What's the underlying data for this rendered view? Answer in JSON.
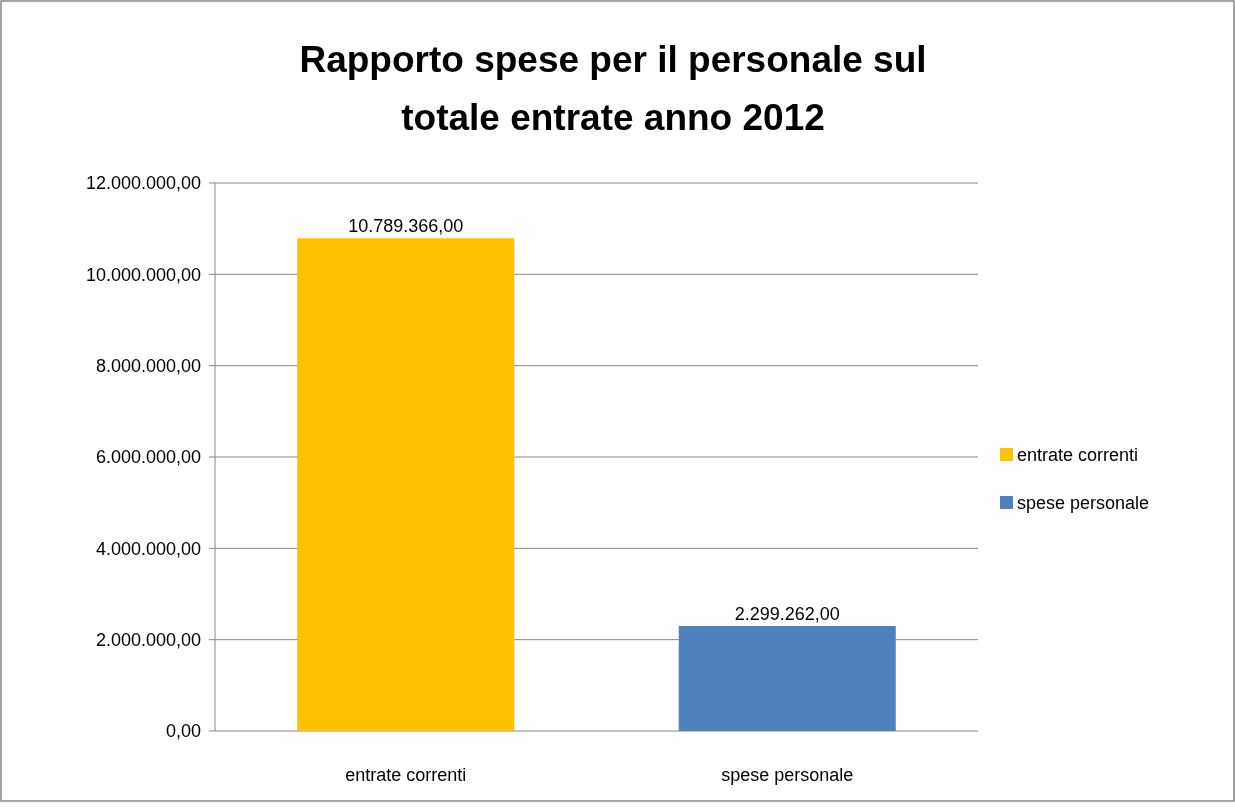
{
  "chart_data": {
    "type": "bar",
    "title": "Rapporto spese per il personale sul totale entrate anno 2012",
    "categories": [
      "entrate correnti",
      "spese personale"
    ],
    "series": [
      {
        "name": "entrate correnti",
        "color": "#ffc000",
        "values": [
          10789366,
          null
        ],
        "value_labels": [
          "10.789.366,00",
          null
        ]
      },
      {
        "name": "spese personale",
        "color": "#4f81bd",
        "values": [
          null,
          2299262
        ],
        "value_labels": [
          null,
          "2.299.262,00"
        ]
      }
    ],
    "ylim": [
      0,
      12000000
    ],
    "yticks": [
      {
        "value": 0,
        "label": "0,00"
      },
      {
        "value": 2000000,
        "label": "2.000.000,00"
      },
      {
        "value": 4000000,
        "label": "4.000.000,00"
      },
      {
        "value": 6000000,
        "label": "6.000.000,00"
      },
      {
        "value": 8000000,
        "label": "8.000.000,00"
      },
      {
        "value": 10000000,
        "label": "10.000.000,00"
      },
      {
        "value": 12000000,
        "label": "12.000.000,00"
      }
    ],
    "grid": "y",
    "legend": "right"
  }
}
